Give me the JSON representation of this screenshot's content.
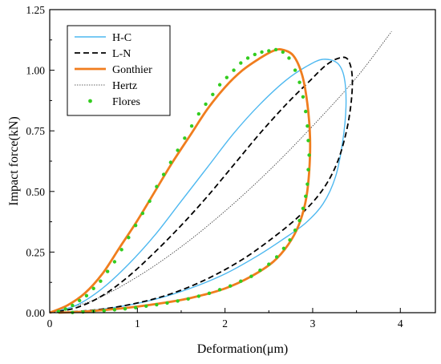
{
  "chart_data": {
    "type": "line",
    "xlabel": "Deformation(μm)",
    "ylabel": "Impact force(kN)",
    "xlim": [
      0,
      4.4
    ],
    "ylim": [
      0,
      1.25
    ],
    "xticks": [
      "0",
      "1",
      "2",
      "3",
      "4"
    ],
    "yticks": [
      "0.00",
      "0.25",
      "0.50",
      "0.75",
      "1.00",
      "1.25"
    ],
    "grid": false,
    "legend_position": "top-left",
    "series": [
      {
        "name": "H-C",
        "color": "#4db8f0",
        "style": "solid",
        "points": [
          [
            0,
            0
          ],
          [
            0.3,
            0.03
          ],
          [
            0.6,
            0.1
          ],
          [
            0.9,
            0.2
          ],
          [
            1.2,
            0.32
          ],
          [
            1.5,
            0.46
          ],
          [
            1.8,
            0.6
          ],
          [
            2.1,
            0.74
          ],
          [
            2.4,
            0.86
          ],
          [
            2.7,
            0.96
          ],
          [
            2.95,
            1.02
          ],
          [
            3.12,
            1.045
          ],
          [
            3.28,
            1.03
          ],
          [
            3.36,
            0.97
          ],
          [
            3.38,
            0.85
          ],
          [
            3.34,
            0.7
          ],
          [
            3.26,
            0.56
          ],
          [
            3.12,
            0.45
          ],
          [
            2.92,
            0.37
          ],
          [
            2.65,
            0.3
          ],
          [
            2.35,
            0.23
          ],
          [
            2.0,
            0.16
          ],
          [
            1.6,
            0.1
          ],
          [
            1.2,
            0.055
          ],
          [
            0.8,
            0.025
          ],
          [
            0.4,
            0.007
          ],
          [
            0.1,
            0
          ]
        ]
      },
      {
        "name": "L-N",
        "color": "#000000",
        "style": "dashed",
        "points": [
          [
            0,
            0
          ],
          [
            0.3,
            0.02
          ],
          [
            0.6,
            0.07
          ],
          [
            0.9,
            0.15
          ],
          [
            1.2,
            0.25
          ],
          [
            1.5,
            0.36
          ],
          [
            1.8,
            0.48
          ],
          [
            2.1,
            0.61
          ],
          [
            2.4,
            0.74
          ],
          [
            2.7,
            0.86
          ],
          [
            2.95,
            0.95
          ],
          [
            3.15,
            1.02
          ],
          [
            3.3,
            1.05
          ],
          [
            3.4,
            1.045
          ],
          [
            3.45,
            0.98
          ],
          [
            3.44,
            0.87
          ],
          [
            3.38,
            0.74
          ],
          [
            3.27,
            0.61
          ],
          [
            3.1,
            0.5
          ],
          [
            2.85,
            0.4
          ],
          [
            2.55,
            0.31
          ],
          [
            2.2,
            0.22
          ],
          [
            1.8,
            0.14
          ],
          [
            1.4,
            0.08
          ],
          [
            1.0,
            0.04
          ],
          [
            0.6,
            0.015
          ],
          [
            0.2,
            0.002
          ],
          [
            0.1,
            0
          ]
        ]
      },
      {
        "name": "Gonthier",
        "color": "#f07d1e",
        "style": "solid-thick",
        "points": [
          [
            0,
            0
          ],
          [
            0.2,
            0.03
          ],
          [
            0.4,
            0.08
          ],
          [
            0.6,
            0.16
          ],
          [
            0.8,
            0.27
          ],
          [
            1.0,
            0.38
          ],
          [
            1.2,
            0.5
          ],
          [
            1.4,
            0.62
          ],
          [
            1.6,
            0.73
          ],
          [
            1.8,
            0.84
          ],
          [
            2.0,
            0.93
          ],
          [
            2.2,
            1.0
          ],
          [
            2.4,
            1.05
          ],
          [
            2.55,
            1.08
          ],
          [
            2.65,
            1.085
          ],
          [
            2.78,
            1.06
          ],
          [
            2.88,
            0.98
          ],
          [
            2.94,
            0.86
          ],
          [
            2.97,
            0.72
          ],
          [
            2.96,
            0.58
          ],
          [
            2.92,
            0.46
          ],
          [
            2.84,
            0.36
          ],
          [
            2.72,
            0.28
          ],
          [
            2.55,
            0.21
          ],
          [
            2.3,
            0.15
          ],
          [
            2.0,
            0.1
          ],
          [
            1.6,
            0.06
          ],
          [
            1.2,
            0.035
          ],
          [
            0.8,
            0.017
          ],
          [
            0.4,
            0.005
          ],
          [
            0.1,
            0
          ]
        ]
      },
      {
        "name": "Hertz",
        "color": "#333333",
        "style": "dotted",
        "points": [
          [
            0,
            0
          ],
          [
            0.5,
            0.052
          ],
          [
            1.0,
            0.148
          ],
          [
            1.5,
            0.272
          ],
          [
            2.0,
            0.419
          ],
          [
            2.5,
            0.585
          ],
          [
            3.0,
            0.77
          ],
          [
            3.5,
            0.97
          ],
          [
            3.9,
            1.16
          ]
        ]
      },
      {
        "name": "Flores",
        "color": "#33cc1f",
        "style": "markers",
        "points": [
          [
            0.1,
            0.005
          ],
          [
            0.18,
            0.015
          ],
          [
            0.26,
            0.03
          ],
          [
            0.34,
            0.05
          ],
          [
            0.42,
            0.07
          ],
          [
            0.5,
            0.1
          ],
          [
            0.58,
            0.13
          ],
          [
            0.66,
            0.17
          ],
          [
            0.74,
            0.21
          ],
          [
            0.82,
            0.26
          ],
          [
            0.9,
            0.31
          ],
          [
            0.98,
            0.36
          ],
          [
            1.06,
            0.41
          ],
          [
            1.14,
            0.46
          ],
          [
            1.22,
            0.52
          ],
          [
            1.3,
            0.57
          ],
          [
            1.38,
            0.62
          ],
          [
            1.46,
            0.67
          ],
          [
            1.54,
            0.72
          ],
          [
            1.62,
            0.77
          ],
          [
            1.7,
            0.82
          ],
          [
            1.78,
            0.86
          ],
          [
            1.86,
            0.9
          ],
          [
            1.94,
            0.94
          ],
          [
            2.02,
            0.97
          ],
          [
            2.1,
            1.0
          ],
          [
            2.18,
            1.03
          ],
          [
            2.26,
            1.05
          ],
          [
            2.34,
            1.065
          ],
          [
            2.42,
            1.075
          ],
          [
            2.5,
            1.08
          ],
          [
            2.58,
            1.085
          ],
          [
            2.66,
            1.075
          ],
          [
            2.73,
            1.05
          ],
          [
            2.8,
            1.0
          ],
          [
            2.85,
            0.95
          ],
          [
            2.89,
            0.89
          ],
          [
            2.92,
            0.83
          ],
          [
            2.94,
            0.77
          ],
          [
            2.95,
            0.71
          ],
          [
            2.96,
            0.65
          ],
          [
            2.95,
            0.59
          ],
          [
            2.94,
            0.53
          ],
          [
            2.92,
            0.48
          ],
          [
            2.89,
            0.43
          ],
          [
            2.85,
            0.38
          ],
          [
            2.8,
            0.34
          ],
          [
            2.74,
            0.3
          ],
          [
            2.67,
            0.265
          ],
          [
            2.59,
            0.23
          ],
          [
            2.5,
            0.2
          ],
          [
            2.4,
            0.175
          ],
          [
            2.3,
            0.15
          ],
          [
            2.18,
            0.13
          ],
          [
            2.06,
            0.11
          ],
          [
            1.94,
            0.095
          ],
          [
            1.82,
            0.08
          ],
          [
            1.7,
            0.068
          ],
          [
            1.58,
            0.057
          ],
          [
            1.46,
            0.048
          ],
          [
            1.34,
            0.04
          ],
          [
            1.22,
            0.033
          ],
          [
            1.1,
            0.027
          ],
          [
            0.98,
            0.021
          ],
          [
            0.86,
            0.016
          ],
          [
            0.74,
            0.012
          ],
          [
            0.62,
            0.008
          ],
          [
            0.5,
            0.005
          ],
          [
            0.38,
            0.003
          ],
          [
            0.26,
            0.001
          ]
        ]
      }
    ]
  }
}
